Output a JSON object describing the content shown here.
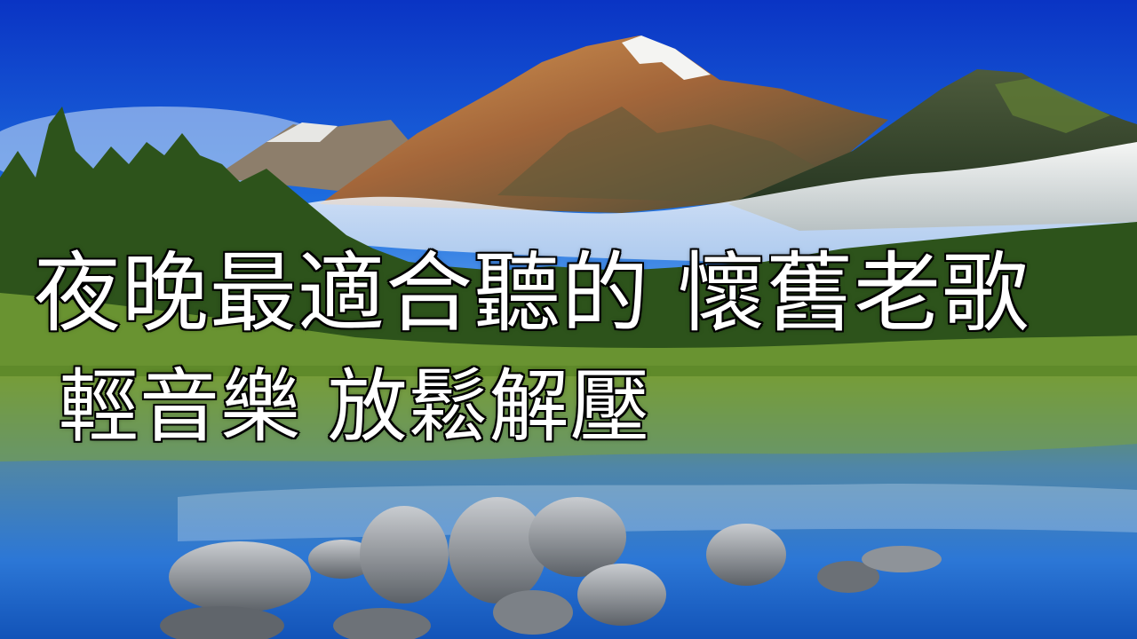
{
  "caption": {
    "line1": "夜晚最適合聽的 懷舊老歌",
    "line2": "輕音樂 放鬆解壓"
  },
  "palette": {
    "sky_top": "#0b3fd1",
    "sky_bottom": "#7fb8f0",
    "mountain_light": "#c98a4a",
    "mountain_dark": "#3d4a3a",
    "snow": "#f4f4f2",
    "mist": "#e9eef6",
    "forest": "#2f5a1e",
    "forest_light": "#7fae3a",
    "water_top": "#7a9c3c",
    "water_bottom": "#1a63c8",
    "rock": "#a9aeb3"
  }
}
